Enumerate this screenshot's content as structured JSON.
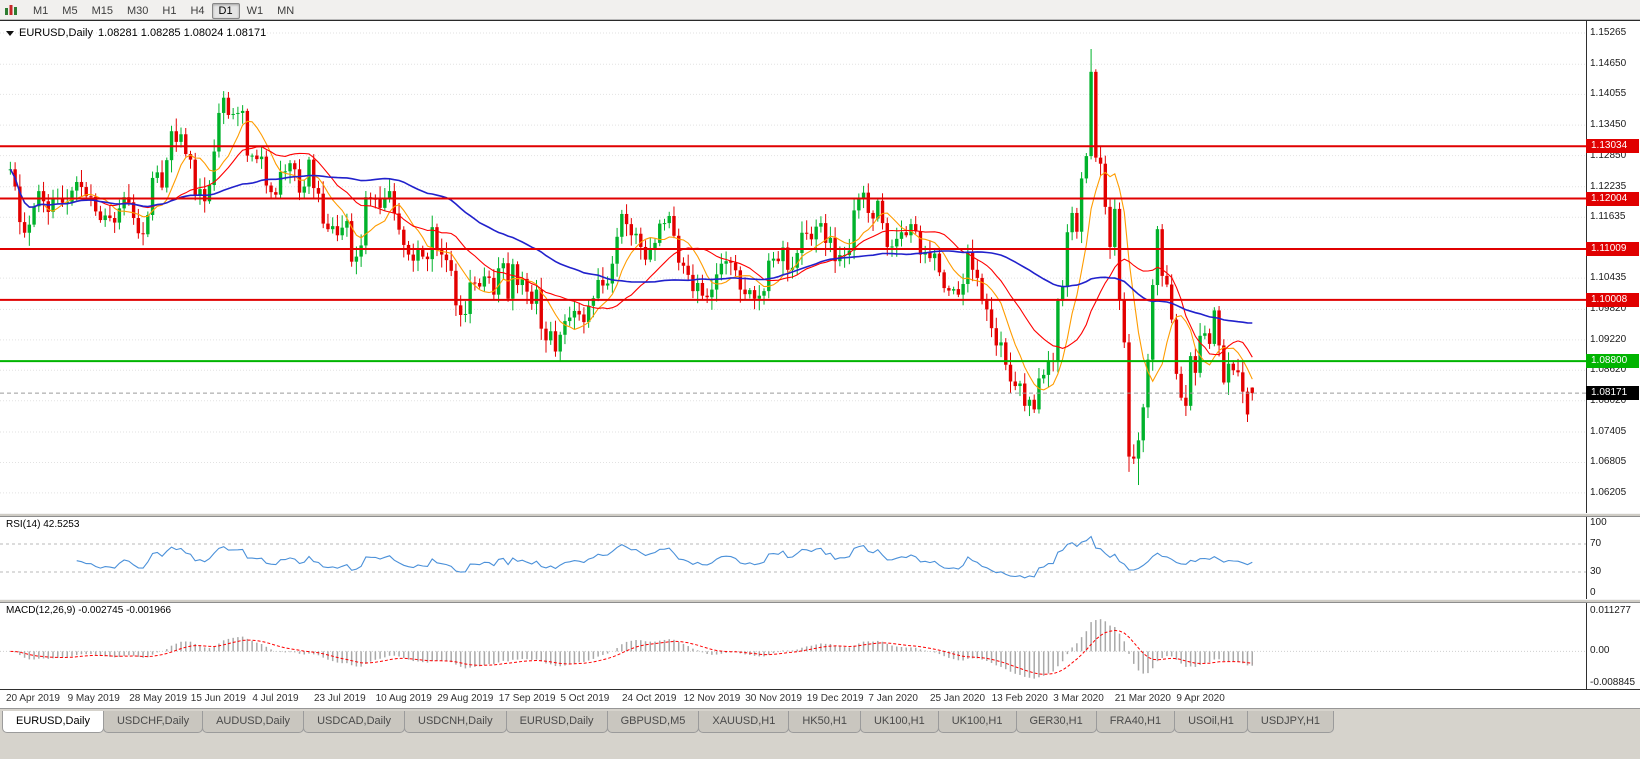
{
  "toolbar": {
    "timeframes": [
      "M1",
      "M5",
      "M15",
      "M30",
      "H1",
      "H4",
      "D1",
      "W1",
      "MN"
    ],
    "active_timeframe": "D1"
  },
  "chart_header": {
    "symbol_period": "EURUSD,Daily",
    "ohlc": "1.08281 1.08285 1.08024 1.08171"
  },
  "chart_data": {
    "type": "candlestick",
    "symbol": "EURUSD",
    "period": "Daily",
    "title": "EURUSD,Daily",
    "price_axis_labels": [
      "1.15265",
      "1.14650",
      "1.14055",
      "1.13450",
      "1.12850",
      "1.12235",
      "1.11635",
      "1.10435",
      "1.09820",
      "1.09220",
      "1.08620",
      "1.08020",
      "1.07405",
      "1.06805",
      "1.06205"
    ],
    "date_axis_labels": [
      "20 Apr 2019",
      "9 May 2019",
      "28 May 2019",
      "15 Jun 2019",
      "4 Jul 2019",
      "23 Jul 2019",
      "10 Aug 2019",
      "29 Aug 2019",
      "17 Sep 2019",
      "5 Oct 2019",
      "24 Oct 2019",
      "12 Nov 2019",
      "30 Nov 2019",
      "19 Dec 2019",
      "7 Jan 2020",
      "25 Jan 2020",
      "13 Feb 2020",
      "3 Mar 2020",
      "21 Mar 2020",
      "9 Apr 2020"
    ],
    "closes": [
      1.1258,
      1.1224,
      1.1154,
      1.1133,
      1.1149,
      1.1185,
      1.1215,
      1.1195,
      1.1174,
      1.12,
      1.1201,
      1.1192,
      1.1194,
      1.1216,
      1.1233,
      1.1223,
      1.1205,
      1.1204,
      1.1175,
      1.1158,
      1.1167,
      1.1162,
      1.1153,
      1.1181,
      1.1203,
      1.1193,
      1.1162,
      1.1132,
      1.113,
      1.1168,
      1.1241,
      1.1252,
      1.1222,
      1.1276,
      1.1333,
      1.1312,
      1.1327,
      1.1288,
      1.1277,
      1.1207,
      1.1219,
      1.1195,
      1.1227,
      1.1293,
      1.1369,
      1.1399,
      1.1365,
      1.1367,
      1.1369,
      1.1373,
      1.1285,
      1.1285,
      1.1278,
      1.1283,
      1.1226,
      1.1213,
      1.1208,
      1.1253,
      1.1254,
      1.127,
      1.1258,
      1.1212,
      1.1224,
      1.1277,
      1.1221,
      1.121,
      1.1151,
      1.114,
      1.1146,
      1.1128,
      1.1143,
      1.1156,
      1.1076,
      1.1086,
      1.1108,
      1.1203,
      1.12,
      1.1199,
      1.1182,
      1.1199,
      1.1215,
      1.1171,
      1.1139,
      1.1109,
      1.109,
      1.1078,
      1.1099,
      1.1086,
      1.1081,
      1.1144,
      1.1101,
      1.109,
      1.1079,
      1.1058,
      1.099,
      1.0971,
      1.0973,
      1.1035,
      1.1034,
      1.1027,
      1.1047,
      1.1044,
      1.1011,
      1.1063,
      1.1073,
      1.1003,
      1.1071,
      1.103,
      1.1042,
      1.1017,
      1.0993,
      1.1021,
      1.0944,
      1.0921,
      1.0939,
      1.0899,
      1.0932,
      1.0959,
      1.0966,
      1.0979,
      1.0972,
      1.0957,
      1.0989,
      1.1004,
      1.104,
      1.1029,
      1.1033,
      1.1072,
      1.1125,
      1.117,
      1.115,
      1.1128,
      1.1131,
      1.1105,
      1.108,
      1.1099,
      1.1113,
      1.1151,
      1.1152,
      1.1166,
      1.1127,
      1.1074,
      1.1068,
      1.105,
      1.1018,
      1.1034,
      1.1009,
      1.1006,
      1.1021,
      1.1051,
      1.1072,
      1.1077,
      1.1074,
      1.1059,
      1.1021,
      1.1012,
      1.102,
      1.1003,
      1.1009,
      1.1018,
      1.1078,
      1.1082,
      1.1077,
      1.1104,
      1.106,
      1.1064,
      1.1093,
      1.1133,
      1.1131,
      1.112,
      1.1145,
      1.1152,
      1.1113,
      1.1123,
      1.1077,
      1.1089,
      1.1089,
      1.1098,
      1.1177,
      1.1199,
      1.1212,
      1.1172,
      1.1161,
      1.1196,
      1.1152,
      1.1105,
      1.1106,
      1.1121,
      1.1134,
      1.1128,
      1.115,
      1.1136,
      1.109,
      1.1095,
      1.1083,
      1.1092,
      1.1055,
      1.1024,
      1.1019,
      1.1022,
      1.1011,
      1.1032,
      1.1094,
      1.106,
      1.1044,
      1.0999,
      1.0982,
      1.0945,
      1.0911,
      1.0917,
      1.0873,
      1.084,
      1.0831,
      1.0836,
      1.0792,
      1.0804,
      1.0785,
      1.0846,
      1.0853,
      1.0881,
      1.088,
      1.0999,
      1.1026,
      1.1134,
      1.1172,
      1.1135,
      1.124,
      1.1284,
      1.145,
      1.1281,
      1.1269,
      1.1184,
      1.1105,
      1.118,
      1.1,
      1.0917,
      1.0692,
      1.0688,
      1.0724,
      1.0789,
      1.0883,
      1.103,
      1.114,
      1.1048,
      1.1031,
      1.0962,
      1.0855,
      1.0808,
      1.0792,
      1.089,
      1.0857,
      1.093,
      1.0935,
      1.0914,
      1.098,
      1.0911,
      1.0838,
      1.0875,
      1.0862,
      1.0858,
      1.082,
      1.0775,
      1.0817
    ],
    "open_overrides": {
      "262": 1.0828
    },
    "wick_overrides": {
      "45": {
        "high": 1.1412
      },
      "116": {
        "low": 1.0879
      },
      "216": {
        "low": 1.0778
      },
      "228": {
        "high": 1.1495
      },
      "236": {
        "low": 1.0662
      },
      "238": {
        "low": 1.0636
      },
      "262": {
        "high": 1.08285,
        "low": 1.08024
      }
    },
    "horizontal_lines": [
      {
        "price": 1.13034,
        "label": "1.13034",
        "color": "#e00000"
      },
      {
        "price": 1.12004,
        "label": "1.12004",
        "color": "#e00000"
      },
      {
        "price": 1.11009,
        "label": "1.11009",
        "color": "#e00000"
      },
      {
        "price": 1.10008,
        "label": "1.10008",
        "color": "#e00000"
      },
      {
        "price": 1.088,
        "label": "1.08800",
        "color": "#00b400"
      }
    ],
    "current_price": {
      "value": 1.08171,
      "label": "1.08171"
    },
    "moving_averages": [
      {
        "period": 8,
        "color": "#ff9c00"
      },
      {
        "period": 20,
        "color": "#ff0000"
      },
      {
        "period": 50,
        "color": "#2121cc"
      }
    ],
    "colors": {
      "up": "#00b22b",
      "down": "#e30000",
      "grid": "#e2e2e2",
      "last_price_line": "#9a9a9a"
    },
    "indicators": {
      "rsi": {
        "label": "RSI(14) 42.5253",
        "period": 14,
        "levels": [
          70,
          30
        ],
        "axis_labels": [
          "100",
          "70",
          "30",
          "0"
        ],
        "line_color": "#4a90d9",
        "level_color": "#b9b9b9"
      },
      "macd": {
        "label": "MACD(12,26,9) -0.002745 -0.001966",
        "fast": 12,
        "slow": 26,
        "signal": 9,
        "axis_labels": [
          "0.011277",
          "0.00",
          "-0.008845"
        ],
        "histogram_color": "#a9a9a9",
        "signal_color": "#ff0000",
        "zero_line_color": "#cfcfcf"
      }
    }
  },
  "tabs": {
    "items": [
      "EURUSD,Daily",
      "USDCHF,Daily",
      "AUDUSD,Daily",
      "USDCAD,Daily",
      "USDCNH,Daily",
      "EURUSD,Daily",
      "GBPUSD,M5",
      "XAUUSD,H1",
      "HK50,H1",
      "UK100,H1",
      "UK100,H1",
      "GER30,H1",
      "FRA40,H1",
      "USOil,H1",
      "USDJPY,H1"
    ],
    "active_index": 0
  }
}
